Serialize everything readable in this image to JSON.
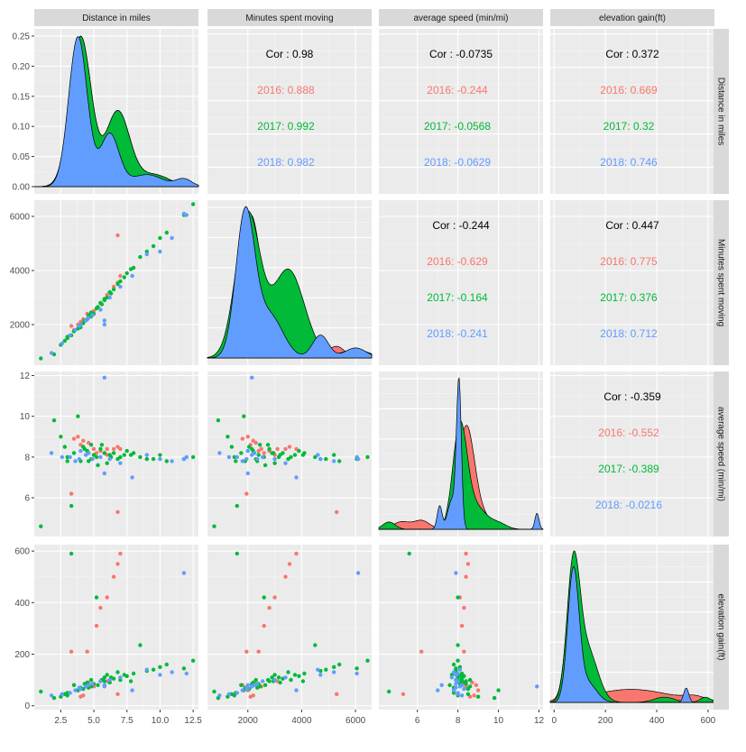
{
  "chart_data": {
    "type": "scatter-matrix",
    "variables": [
      "Distance in miles",
      "Minutes spent moving",
      "average speed (min/mi)",
      "elevation gain(ft)"
    ],
    "groups": [
      {
        "name": "2016",
        "color": "#F8766D"
      },
      {
        "name": "2017",
        "color": "#00BA38"
      },
      {
        "name": "2018",
        "color": "#619CFF"
      }
    ],
    "axes": [
      {
        "range": [
          0.5,
          12.9
        ],
        "ticks": [
          2.5,
          5.0,
          7.5,
          10.0,
          12.5
        ],
        "tick_labels": [
          "2.5",
          "5.0",
          "7.5",
          "10.0",
          "12.5"
        ]
      },
      {
        "range": [
          500,
          6600
        ],
        "ticks": [
          2000,
          4000,
          6000
        ],
        "tick_labels": [
          "2000",
          "4000",
          "6000"
        ]
      },
      {
        "range": [
          4.1,
          12.2
        ],
        "ticks": [
          6,
          8,
          10,
          12
        ],
        "tick_labels": [
          "6",
          "8",
          "10",
          "12"
        ]
      },
      {
        "range": [
          -15,
          625
        ],
        "ticks": [
          0,
          200,
          400,
          600
        ],
        "tick_labels": [
          "0",
          "200",
          "400",
          "600"
        ]
      }
    ],
    "density_axis": {
      "range": [
        -0.012,
        0.262
      ],
      "ticks": [
        0.0,
        0.05,
        0.1,
        0.15,
        0.2,
        0.25
      ],
      "tick_labels": [
        "0.00",
        "0.05",
        "0.10",
        "0.15",
        "0.20",
        "0.25"
      ]
    },
    "correlations": [
      {
        "row": 0,
        "col": 1,
        "overall": "Cor : 0.98",
        "groups": [
          "2016: 0.888",
          "2017: 0.992",
          "2018: 0.982"
        ]
      },
      {
        "row": 0,
        "col": 2,
        "overall": "Cor : -0.0735",
        "groups": [
          "2016: -0.244",
          "2017: -0.0568",
          "2018: -0.0629"
        ]
      },
      {
        "row": 0,
        "col": 3,
        "overall": "Cor : 0.372",
        "groups": [
          "2016: 0.669",
          "2017: 0.32",
          "2018: 0.746"
        ]
      },
      {
        "row": 1,
        "col": 2,
        "overall": "Cor : -0.244",
        "groups": [
          "2016: -0.629",
          "2017: -0.164",
          "2018: -0.241"
        ]
      },
      {
        "row": 1,
        "col": 3,
        "overall": "Cor : 0.447",
        "groups": [
          "2016: 0.775",
          "2017: 0.376",
          "2018: 0.712"
        ]
      },
      {
        "row": 2,
        "col": 3,
        "overall": "Cor : -0.359",
        "groups": [
          "2016: -0.552",
          "2017: -0.389",
          "2018: -0.0216"
        ]
      }
    ],
    "points": {
      "2016": [
        [
          4.0,
          2100,
          8.6,
          35
        ],
        [
          4.2,
          2200,
          8.8,
          40
        ],
        [
          3.8,
          2000,
          9.0,
          60
        ],
        [
          4.5,
          2400,
          8.3,
          210
        ],
        [
          5.2,
          2600,
          8.2,
          310
        ],
        [
          5.5,
          2800,
          8.3,
          380
        ],
        [
          6.0,
          3000,
          8.1,
          420
        ],
        [
          6.5,
          3400,
          8.4,
          500
        ],
        [
          6.8,
          3550,
          8.5,
          550
        ],
        [
          7.0,
          3800,
          8.4,
          590
        ],
        [
          3.3,
          1950,
          6.2,
          210
        ],
        [
          6.8,
          5300,
          5.3,
          45
        ],
        [
          4.6,
          2300,
          8.7,
          90
        ],
        [
          5.0,
          2500,
          8.4,
          75
        ],
        [
          6.0,
          3100,
          8.4,
          95
        ],
        [
          3.5,
          1800,
          8.9,
          80
        ]
      ],
      "2017": [
        [
          1.0,
          750,
          4.6,
          55
        ],
        [
          2.0,
          900,
          9.8,
          30
        ],
        [
          2.5,
          1250,
          9.0,
          35
        ],
        [
          3.0,
          1500,
          8.0,
          40
        ],
        [
          3.3,
          1600,
          5.6,
          590
        ],
        [
          3.5,
          1750,
          8.2,
          80
        ],
        [
          4.0,
          1900,
          7.8,
          70
        ],
        [
          4.2,
          2050,
          8.5,
          65
        ],
        [
          4.5,
          2200,
          8.3,
          90
        ],
        [
          4.8,
          2300,
          7.9,
          100
        ],
        [
          5.0,
          2400,
          8.1,
          85
        ],
        [
          5.2,
          2600,
          8.0,
          420
        ],
        [
          5.5,
          2800,
          8.4,
          95
        ],
        [
          5.8,
          2900,
          8.2,
          110
        ],
        [
          6.0,
          3000,
          7.7,
          120
        ],
        [
          6.2,
          3200,
          8.1,
          90
        ],
        [
          6.5,
          3300,
          8.2,
          105
        ],
        [
          6.8,
          3500,
          7.9,
          130
        ],
        [
          7.0,
          3600,
          8.0,
          100
        ],
        [
          7.5,
          3900,
          8.3,
          115
        ],
        [
          7.8,
          4050,
          8.1,
          95
        ],
        [
          8.0,
          4100,
          8.2,
          125
        ],
        [
          8.5,
          4500,
          8.0,
          235
        ],
        [
          9.0,
          4700,
          7.9,
          135
        ],
        [
          10.0,
          5200,
          8.1,
          150
        ],
        [
          10.5,
          5400,
          7.8,
          160
        ],
        [
          11.8,
          6050,
          7.9,
          145
        ],
        [
          12.5,
          6450,
          8.0,
          175
        ],
        [
          3.8,
          1850,
          10.0,
          60
        ],
        [
          4.8,
          2450,
          8.6,
          75
        ],
        [
          5.8,
          2950,
          8.2,
          95
        ],
        [
          3.0,
          1550,
          7.8,
          50
        ],
        [
          4.3,
          2150,
          8.4,
          85
        ],
        [
          6.3,
          3150,
          8.0,
          110
        ],
        [
          5.3,
          2650,
          7.6,
          80
        ],
        [
          7.3,
          3750,
          8.1,
          120
        ],
        [
          2.8,
          1400,
          8.5,
          45
        ],
        [
          4.6,
          2350,
          7.8,
          70
        ],
        [
          5.6,
          2750,
          8.6,
          100
        ],
        [
          9.5,
          4900,
          7.9,
          140
        ]
      ],
      "2018": [
        [
          1.8,
          950,
          8.2,
          40
        ],
        [
          2.6,
          1300,
          8.0,
          45
        ],
        [
          3.2,
          1600,
          8.0,
          50
        ],
        [
          3.6,
          1800,
          7.8,
          60
        ],
        [
          4.0,
          2000,
          8.3,
          65
        ],
        [
          4.4,
          2150,
          8.1,
          75
        ],
        [
          4.9,
          2350,
          7.9,
          85
        ],
        [
          5.5,
          2550,
          8.0,
          95
        ],
        [
          5.8,
          2000,
          7.2,
          80
        ],
        [
          5.8,
          2150,
          11.9,
          75
        ],
        [
          6.2,
          3000,
          7.9,
          100
        ],
        [
          7.0,
          3400,
          7.7,
          110
        ],
        [
          7.9,
          3800,
          7.0,
          60
        ],
        [
          9.0,
          4600,
          8.1,
          140
        ],
        [
          10.0,
          4700,
          7.9,
          120
        ],
        [
          10.9,
          5200,
          7.8,
          130
        ],
        [
          11.8,
          6100,
          7.9,
          515
        ],
        [
          12.0,
          6050,
          8.0,
          125
        ],
        [
          3.9,
          1950,
          7.9,
          70
        ],
        [
          4.6,
          2250,
          8.2,
          80
        ]
      ]
    },
    "density_params": [
      {
        "2016": [
          [
            4.0,
            0.8,
            1.0
          ],
          [
            6.8,
            0.9,
            0.5
          ],
          [
            9.5,
            1.2,
            0.08
          ]
        ],
        "2017": [
          [
            4.0,
            0.8,
            1.0
          ],
          [
            6.8,
            0.9,
            0.5
          ],
          [
            9.5,
            1.2,
            0.08
          ]
        ],
        "2018": [
          [
            3.8,
            0.7,
            1.0
          ],
          [
            6.2,
            0.7,
            0.35
          ],
          [
            9.0,
            1.2,
            0.08
          ],
          [
            11.8,
            0.6,
            0.05
          ]
        ]
      },
      {
        "2016": [
          [
            2100,
            400,
            1.0
          ],
          [
            3600,
            500,
            0.55
          ],
          [
            5300,
            300,
            0.08
          ]
        ],
        "2017": [
          [
            2000,
            450,
            1.0
          ],
          [
            3500,
            600,
            0.62
          ],
          [
            6000,
            500,
            0.06
          ]
        ],
        "2018": [
          [
            1900,
            350,
            1.0
          ],
          [
            2800,
            500,
            0.3
          ],
          [
            4700,
            300,
            0.16
          ],
          [
            6000,
            400,
            0.07
          ]
        ]
      },
      {
        "2016": [
          [
            5.2,
            0.4,
            0.05
          ],
          [
            6.2,
            0.4,
            0.06
          ],
          [
            8.4,
            0.4,
            0.65
          ],
          [
            9.0,
            0.6,
            0.1
          ]
        ],
        "2017": [
          [
            4.6,
            0.3,
            0.05
          ],
          [
            8.1,
            0.35,
            0.7
          ],
          [
            8.9,
            0.5,
            0.15
          ],
          [
            10.0,
            0.4,
            0.04
          ]
        ],
        "2018": [
          [
            7.1,
            0.12,
            0.16
          ],
          [
            8.05,
            0.12,
            1.0
          ],
          [
            7.7,
            0.2,
            0.2
          ],
          [
            11.9,
            0.1,
            0.11
          ]
        ]
      },
      {
        "2016": [
          [
            75,
            25,
            1.0
          ],
          [
            300,
            150,
            0.1
          ],
          [
            550,
            40,
            0.03
          ]
        ],
        "2017": [
          [
            75,
            25,
            1.0
          ],
          [
            130,
            40,
            0.4
          ],
          [
            430,
            40,
            0.04
          ],
          [
            590,
            20,
            0.04
          ]
        ],
        "2018": [
          [
            75,
            22,
            1.0
          ],
          [
            130,
            35,
            0.15
          ],
          [
            515,
            10,
            0.11
          ]
        ]
      }
    ]
  }
}
